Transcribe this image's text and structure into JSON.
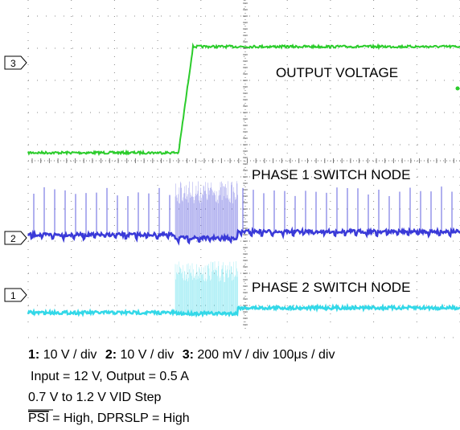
{
  "channel_markers": [
    "3",
    "2",
    "1"
  ],
  "traces": [
    "OUTPUT VOLTAGE",
    "PHASE 1 SWITCH NODE",
    "PHASE 2 SWITCH NODE"
  ],
  "scale": [
    "1:",
    "10 V / div",
    "2:",
    "10 V / div",
    "3:",
    "200 mV / div 100μs / div"
  ],
  "conditions": [
    "Input = 12 V, Output = 0.5 A",
    "0.7 V to 1.2 V VID Step"
  ],
  "signals": {
    "psi": "PSI",
    "rest": " = High, DPRSLP = High"
  }
}
